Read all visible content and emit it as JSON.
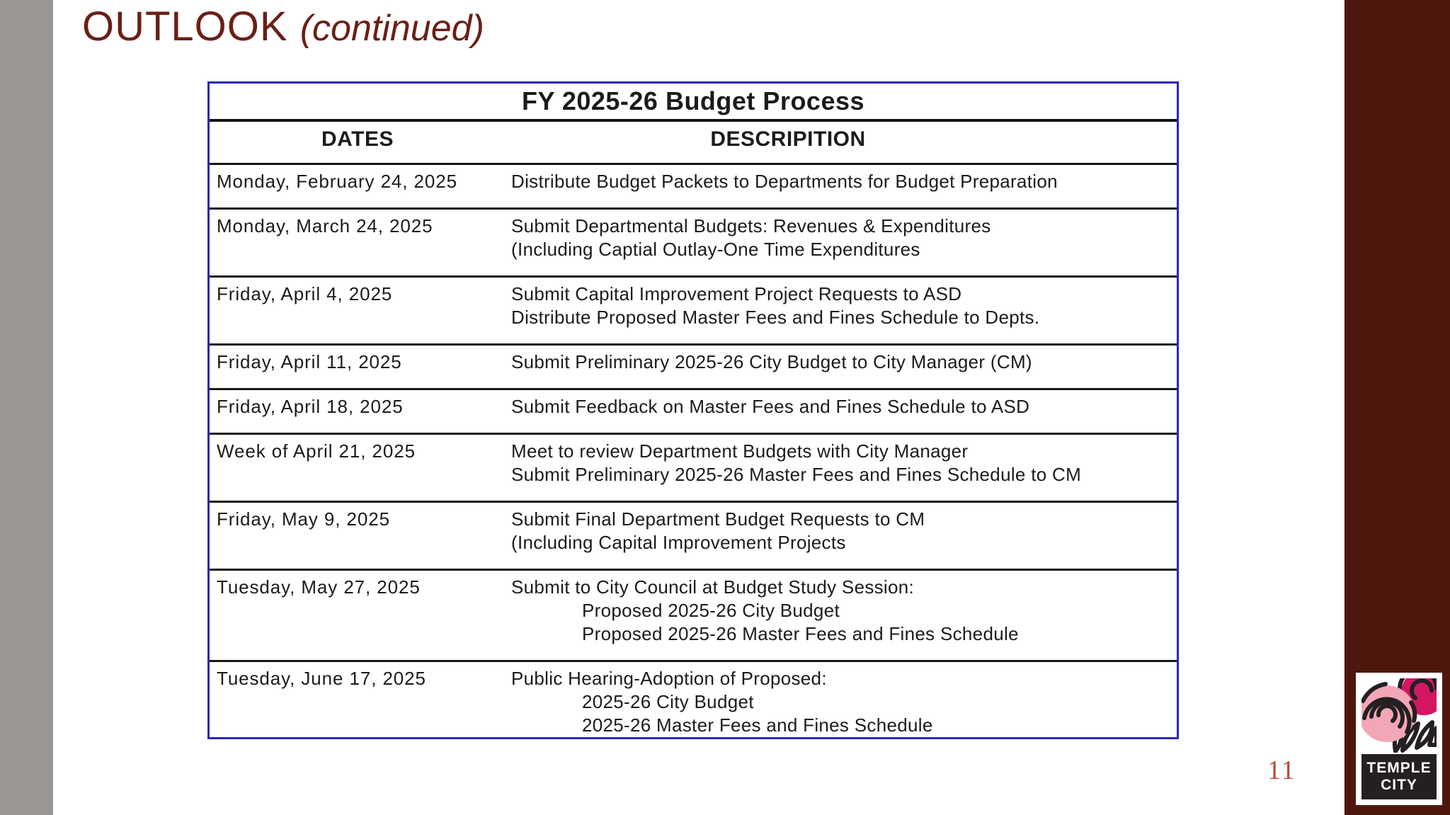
{
  "slide": {
    "title": "OUTLOOK",
    "title_suffix": "(continued)",
    "page_number": "11"
  },
  "table": {
    "title": "FY 2025-26 Budget Process",
    "columns": [
      "DATES",
      "DESCRIPITION"
    ],
    "rows": [
      {
        "date": "Monday, February 24, 2025",
        "description": [
          {
            "text": "Distribute Budget Packets to Departments for Budget Preparation",
            "indent": false
          }
        ]
      },
      {
        "date": "Monday, March 24, 2025",
        "description": [
          {
            "text": "Submit Departmental Budgets: Revenues & Expenditures",
            "indent": false
          },
          {
            "text": "(Including Captial Outlay-One Time Expenditures",
            "indent": false
          }
        ]
      },
      {
        "date": "Friday, April 4, 2025",
        "description": [
          {
            "text": "Submit Capital Improvement Project Requests to ASD",
            "indent": false
          },
          {
            "text": "Distribute Proposed Master Fees and Fines Schedule to Depts.",
            "indent": false
          }
        ]
      },
      {
        "date": "Friday, April 11, 2025",
        "description": [
          {
            "text": "Submit Preliminary 2025-26 City Budget to City Manager (CM)",
            "indent": false
          }
        ]
      },
      {
        "date": "Friday, April 18, 2025",
        "description": [
          {
            "text": "Submit Feedback on Master Fees and Fines Schedule to ASD",
            "indent": false
          }
        ]
      },
      {
        "date": "Week of April 21, 2025",
        "description": [
          {
            "text": "Meet to review Department Budgets with City Manager",
            "indent": false
          },
          {
            "text": "Submit Preliminary 2025-26 Master Fees and Fines Schedule to CM",
            "indent": false
          }
        ]
      },
      {
        "date": "Friday, May 9, 2025",
        "description": [
          {
            "text": "Submit Final Department Budget Requests to CM",
            "indent": false
          },
          {
            "text": "(Including Capital Improvement Projects",
            "indent": false
          }
        ]
      },
      {
        "date": "Tuesday, May 27, 2025",
        "description": [
          {
            "text": "Submit to City Council at Budget Study Session:",
            "indent": false
          },
          {
            "text": "Proposed 2025-26 City Budget",
            "indent": true
          },
          {
            "text": "Proposed 2025-26 Master Fees and Fines Schedule",
            "indent": true
          }
        ]
      },
      {
        "date": "Tuesday, June 17, 2025",
        "description": [
          {
            "text": "Public Hearing-Adoption of Proposed:",
            "indent": false
          },
          {
            "text": "2025-26 City Budget",
            "indent": true
          },
          {
            "text": "2025-26 Master Fees and Fines Schedule",
            "indent": true
          }
        ]
      }
    ]
  },
  "logo": {
    "line1": "TEMPLE",
    "line2": "CITY"
  },
  "colors": {
    "accent_maroon": "#6b1f16",
    "sidebar_maroon": "#4e170e",
    "left_bar_gray": "#9b9594",
    "table_border_blue": "#2b28b4",
    "text_black": "#1b1b1b",
    "page_number_red": "#c2463a",
    "logo_pink": "#f2a6b6",
    "logo_magenta": "#d41663",
    "logo_black": "#242021"
  }
}
